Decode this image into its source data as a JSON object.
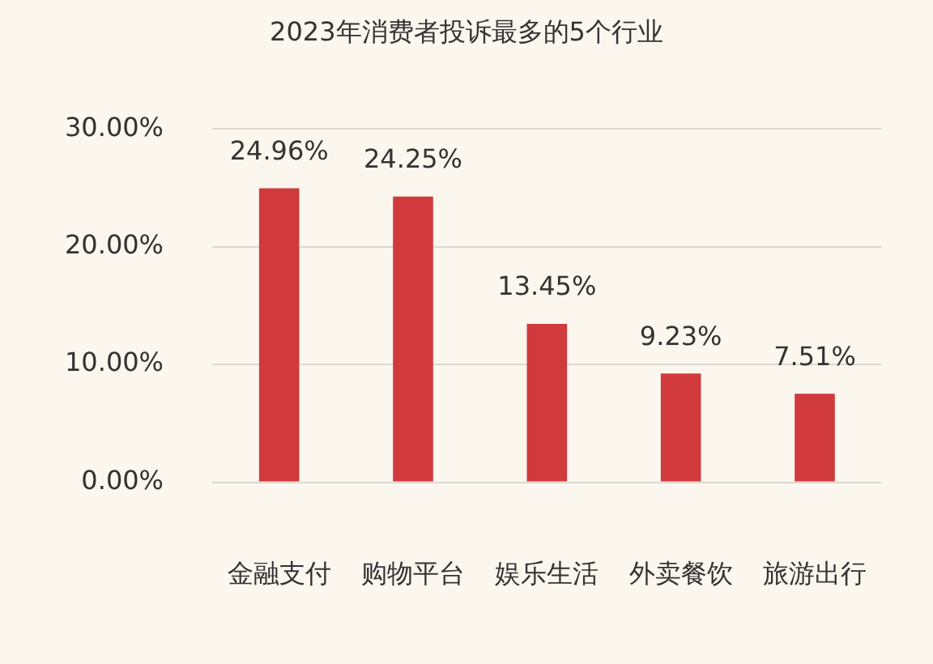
{
  "chart_data": {
    "type": "bar",
    "title": "2023年消费者投诉最多的5个行业",
    "categories": [
      "金融支付",
      "购物平台",
      "娱乐生活",
      "外卖餐饮",
      "旅游出行"
    ],
    "values": [
      24.96,
      24.25,
      13.45,
      9.23,
      7.51
    ],
    "value_labels": [
      "24.96%",
      "24.25%",
      "13.45%",
      "9.23%",
      "7.51%"
    ],
    "color": "#d13a3d",
    "ylim": [
      0,
      30
    ],
    "yticks": [
      {
        "value": 0,
        "label": "0.00%"
      },
      {
        "value": 10,
        "label": "10.00%"
      },
      {
        "value": 20,
        "label": "20.00%"
      },
      {
        "value": 30,
        "label": "30.00%"
      }
    ],
    "grid": "y",
    "legend": false
  }
}
